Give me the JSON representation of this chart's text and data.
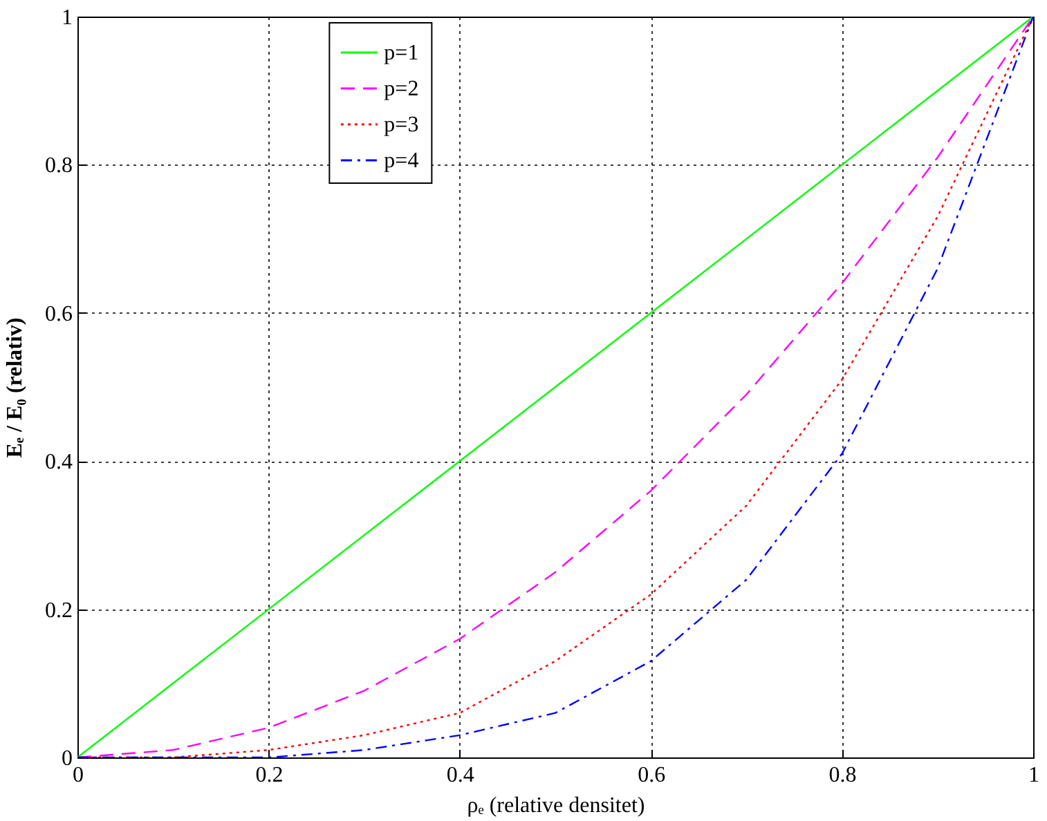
{
  "chart_data": {
    "type": "line",
    "xlabel": "ρₑ (relative densitet)",
    "ylabel": "Eₑ / E₀ (relativ)",
    "x": [
      0,
      0.1,
      0.2,
      0.3,
      0.4,
      0.5,
      0.6,
      0.7,
      0.8,
      0.9,
      1
    ],
    "series": [
      {
        "name": "p=1",
        "color": "#00ff00",
        "line_style": "solid",
        "values": [
          0,
          0.1,
          0.2,
          0.3,
          0.4,
          0.5,
          0.6,
          0.7,
          0.8,
          0.9,
          1
        ]
      },
      {
        "name": "p=2",
        "color": "#ff00ff",
        "line_style": "dashed",
        "values": [
          0,
          0.01,
          0.04,
          0.09,
          0.16,
          0.25,
          0.36,
          0.49,
          0.64,
          0.81,
          1
        ]
      },
      {
        "name": "p=3",
        "color": "#ff0000",
        "line_style": "dotted",
        "values": [
          0,
          0,
          0.01,
          0.03,
          0.06,
          0.13,
          0.22,
          0.34,
          0.51,
          0.73,
          1
        ]
      },
      {
        "name": "p=4",
        "color": "#0000ff",
        "line_style": "dashdot",
        "values": [
          0,
          0,
          0,
          0.01,
          0.03,
          0.06,
          0.13,
          0.24,
          0.41,
          0.66,
          1
        ]
      }
    ],
    "xlim": [
      0,
      1
    ],
    "ylim": [
      0,
      1
    ],
    "xticks": [
      0,
      0.2,
      0.4,
      0.6,
      0.8,
      1
    ],
    "yticks": [
      0,
      0.2,
      0.4,
      0.6,
      0.8,
      1
    ],
    "grid": true,
    "legend": "top"
  }
}
